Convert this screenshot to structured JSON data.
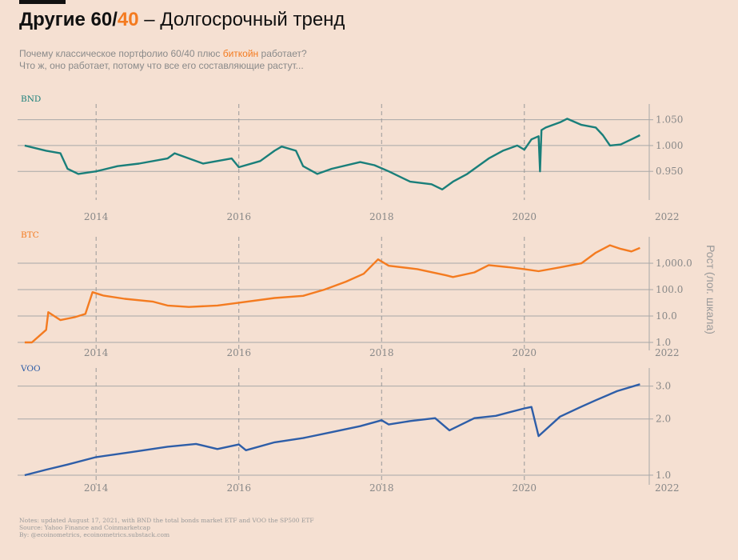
{
  "title": {
    "main": "Другие 60/",
    "accent": "40",
    "rest": " – Долгосрочный тренд"
  },
  "subtitle": {
    "line1_pre": "Почему классическое портфолио 60/40 плюс ",
    "line1_hl": "биткойн",
    "line1_post": " работает?",
    "line2": "Что ж, оно работает, потому что все его составляющие растут..."
  },
  "y_axis_title": "Рост (лог. шкала)",
  "notes": [
    "Notes: updated August 17, 2021, with BND the total bonds market ETF and VOO the SP500 ETF",
    "Source: Yahoo Finance and Coinmarketcap",
    "By: @ecoinometrics, ecoinometrics.substack.com"
  ],
  "colors": {
    "background": "#f5e0d2",
    "BND": "#1a7f7a",
    "BTC": "#f47b20",
    "VOO": "#2e5ea8",
    "accent": "#f47b20"
  },
  "chart_data": [
    {
      "type": "line",
      "name": "BND",
      "y_scale": "linear",
      "xlim": [
        2012.9,
        2021.75
      ],
      "ylim": [
        0.91,
        1.065
      ],
      "x_ticks": [
        "2014",
        "2016",
        "2018",
        "2020",
        "2022"
      ],
      "x_tick_values": [
        2014,
        2016,
        2018,
        2020,
        2022
      ],
      "y_ticks": [
        "0.950",
        "1.000",
        "1.050"
      ],
      "y_tick_values": [
        0.95,
        1.0,
        1.05
      ],
      "x": [
        2013.0,
        2013.3,
        2013.5,
        2013.6,
        2013.75,
        2014.0,
        2014.3,
        2014.6,
        2015.0,
        2015.1,
        2015.5,
        2015.9,
        2016.0,
        2016.3,
        2016.5,
        2016.6,
        2016.8,
        2016.9,
        2017.1,
        2017.3,
        2017.7,
        2017.9,
        2018.1,
        2018.4,
        2018.7,
        2018.85,
        2019.0,
        2019.2,
        2019.5,
        2019.7,
        2019.9,
        2020.0,
        2020.1,
        2020.2,
        2020.22,
        2020.24,
        2020.3,
        2020.5,
        2020.6,
        2020.8,
        2021.0,
        2021.1,
        2021.2,
        2021.35,
        2021.5,
        2021.62
      ],
      "y": [
        1.0,
        0.99,
        0.985,
        0.955,
        0.945,
        0.95,
        0.96,
        0.965,
        0.975,
        0.985,
        0.965,
        0.975,
        0.958,
        0.97,
        0.99,
        0.998,
        0.99,
        0.96,
        0.945,
        0.955,
        0.968,
        0.962,
        0.95,
        0.93,
        0.925,
        0.915,
        0.93,
        0.945,
        0.975,
        0.99,
        1.0,
        0.992,
        1.012,
        1.018,
        0.95,
        1.03,
        1.035,
        1.045,
        1.052,
        1.04,
        1.035,
        1.02,
        1.0,
        1.002,
        1.012,
        1.02
      ]
    },
    {
      "type": "line",
      "name": "BTC",
      "y_scale": "log",
      "xlim": [
        2012.9,
        2021.75
      ],
      "ylim": [
        1.0,
        5000.0
      ],
      "x_ticks": [
        "2014",
        "2016",
        "2018",
        "2020",
        "2022"
      ],
      "x_tick_values": [
        2014,
        2016,
        2018,
        2020,
        2022
      ],
      "y_ticks": [
        "1.0",
        "10.0",
        "100.0",
        "1,000.0"
      ],
      "y_tick_values": [
        1.0,
        10.0,
        100.0,
        1000.0
      ],
      "x": [
        2013.0,
        2013.1,
        2013.3,
        2013.33,
        2013.5,
        2013.7,
        2013.85,
        2013.95,
        2014.1,
        2014.4,
        2014.8,
        2015.0,
        2015.3,
        2015.7,
        2016.0,
        2016.5,
        2016.9,
        2017.2,
        2017.5,
        2017.75,
        2017.95,
        2018.1,
        2018.5,
        2018.9,
        2019.0,
        2019.3,
        2019.5,
        2019.8,
        2020.0,
        2020.2,
        2020.5,
        2020.8,
        2021.0,
        2021.2,
        2021.35,
        2021.5,
        2021.62
      ],
      "y": [
        1.0,
        1.0,
        3.0,
        14.0,
        7.0,
        9.0,
        12.0,
        80.0,
        60.0,
        45.0,
        35.0,
        25.0,
        22.0,
        25.0,
        32.0,
        48.0,
        58.0,
        100.0,
        200.0,
        400.0,
        1400.0,
        800.0,
        600.0,
        350.0,
        300.0,
        450.0,
        850.0,
        700.0,
        600.0,
        500.0,
        700.0,
        1000.0,
        2500.0,
        4800.0,
        3500.0,
        2800.0,
        3800.0
      ]
    },
    {
      "type": "line",
      "name": "VOO",
      "y_scale": "log",
      "xlim": [
        2012.9,
        2021.75
      ],
      "ylim": [
        0.98,
        3.4
      ],
      "x_ticks": [
        "2014",
        "2016",
        "2018",
        "2020",
        "2022"
      ],
      "x_tick_values": [
        2014,
        2016,
        2018,
        2020,
        2022
      ],
      "y_ticks": [
        "1.0",
        "2.0",
        "3.0"
      ],
      "y_tick_values": [
        1.0,
        2.0,
        3.0
      ],
      "x": [
        2013.0,
        2013.3,
        2013.6,
        2014.0,
        2014.5,
        2015.0,
        2015.4,
        2015.7,
        2016.0,
        2016.1,
        2016.5,
        2016.9,
        2017.3,
        2017.7,
        2018.0,
        2018.1,
        2018.4,
        2018.75,
        2018.95,
        2019.3,
        2019.6,
        2020.0,
        2020.1,
        2020.2,
        2020.5,
        2020.8,
        2021.0,
        2021.3,
        2021.62
      ],
      "y": [
        1.0,
        1.07,
        1.14,
        1.25,
        1.33,
        1.42,
        1.47,
        1.38,
        1.46,
        1.36,
        1.5,
        1.58,
        1.7,
        1.83,
        1.97,
        1.87,
        1.95,
        2.02,
        1.74,
        2.02,
        2.08,
        2.28,
        2.32,
        1.62,
        2.06,
        2.33,
        2.52,
        2.82,
        3.07
      ]
    }
  ]
}
